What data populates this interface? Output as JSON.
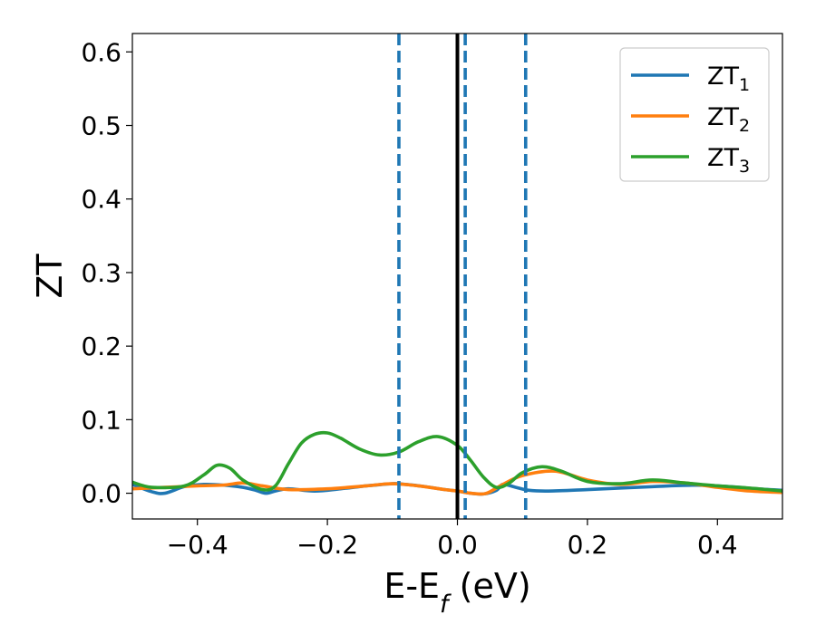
{
  "chart_data": {
    "type": "line",
    "xlabel": "E-E",
    "xlabel_sub": "f",
    "xlabel_unit": " (eV)",
    "ylabel": "ZT",
    "xlim": [
      -0.5,
      0.5
    ],
    "ylim": [
      -0.035,
      0.625
    ],
    "xticks": [
      -0.4,
      -0.2,
      0.0,
      0.2,
      0.4
    ],
    "xtick_labels": [
      "−0.4",
      "−0.2",
      "0.0",
      "0.2",
      "0.4"
    ],
    "yticks": [
      0.0,
      0.1,
      0.2,
      0.3,
      0.4,
      0.5,
      0.6
    ],
    "ytick_labels": [
      "0.0",
      "0.1",
      "0.2",
      "0.3",
      "0.4",
      "0.5",
      "0.6"
    ],
    "grid": false,
    "legend_position": "top-right",
    "vlines": [
      {
        "x": 0.0,
        "style": "solid",
        "color": "#000000"
      },
      {
        "x": -0.09,
        "style": "dashed",
        "color": "#1f77b4"
      },
      {
        "x": 0.012,
        "style": "dashed",
        "color": "#1f77b4"
      },
      {
        "x": 0.105,
        "style": "dashed",
        "color": "#1f77b4"
      }
    ],
    "series": [
      {
        "name": "ZT",
        "sub": "1",
        "color": "#1f77b4",
        "x": [
          -0.5,
          -0.47,
          -0.45,
          -0.42,
          -0.39,
          -0.36,
          -0.33,
          -0.31,
          -0.295,
          -0.28,
          -0.26,
          -0.22,
          -0.18,
          -0.14,
          -0.1,
          -0.08,
          -0.05,
          -0.02,
          0.0,
          0.02,
          0.04,
          0.06,
          0.07,
          0.09,
          0.11,
          0.14,
          0.2,
          0.3,
          0.37,
          0.42,
          0.46,
          0.5
        ],
        "y": [
          0.012,
          0.002,
          0.0,
          0.009,
          0.012,
          0.011,
          0.008,
          0.004,
          0.0,
          0.003,
          0.006,
          0.003,
          0.006,
          0.01,
          0.013,
          0.012,
          0.009,
          0.005,
          0.003,
          0.0,
          -0.001,
          0.004,
          0.012,
          0.008,
          0.004,
          0.003,
          0.005,
          0.009,
          0.011,
          0.009,
          0.006,
          0.004
        ]
      },
      {
        "name": "ZT",
        "sub": "2",
        "color": "#ff7f0e",
        "x": [
          -0.5,
          -0.45,
          -0.4,
          -0.36,
          -0.33,
          -0.3,
          -0.26,
          -0.2,
          -0.14,
          -0.1,
          -0.06,
          -0.02,
          0.0,
          0.02,
          0.04,
          0.05,
          0.07,
          0.1,
          0.15,
          0.2,
          0.25,
          0.3,
          0.35,
          0.4,
          0.45,
          0.5
        ],
        "y": [
          0.006,
          0.008,
          0.01,
          0.011,
          0.014,
          0.01,
          0.005,
          0.006,
          0.01,
          0.013,
          0.01,
          0.005,
          0.003,
          0.0,
          -0.001,
          0.002,
          0.012,
          0.024,
          0.03,
          0.018,
          0.012,
          0.016,
          0.014,
          0.008,
          0.003,
          0.001
        ]
      },
      {
        "name": "ZT",
        "sub": "3",
        "color": "#2ca02c",
        "x": [
          -0.5,
          -0.47,
          -0.42,
          -0.39,
          -0.37,
          -0.35,
          -0.33,
          -0.3,
          -0.28,
          -0.26,
          -0.24,
          -0.22,
          -0.2,
          -0.18,
          -0.15,
          -0.12,
          -0.09,
          -0.06,
          -0.03,
          0.0,
          0.02,
          0.04,
          0.06,
          0.08,
          0.1,
          0.13,
          0.16,
          0.2,
          0.25,
          0.3,
          0.35,
          0.4,
          0.45,
          0.5
        ],
        "y": [
          0.015,
          0.008,
          0.01,
          0.025,
          0.038,
          0.034,
          0.018,
          0.005,
          0.01,
          0.04,
          0.068,
          0.08,
          0.082,
          0.075,
          0.06,
          0.052,
          0.056,
          0.07,
          0.077,
          0.065,
          0.045,
          0.022,
          0.008,
          0.014,
          0.028,
          0.036,
          0.03,
          0.016,
          0.013,
          0.018,
          0.014,
          0.01,
          0.007,
          0.003
        ]
      }
    ]
  }
}
